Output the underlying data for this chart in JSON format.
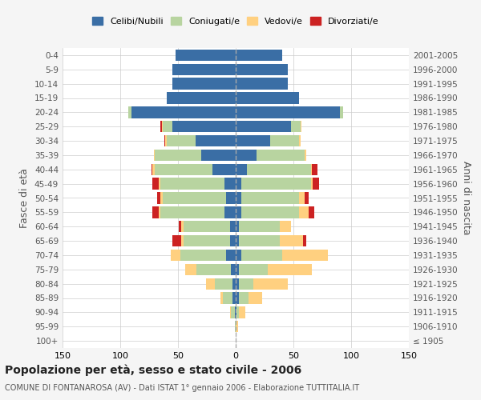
{
  "age_groups": [
    "100+",
    "95-99",
    "90-94",
    "85-89",
    "80-84",
    "75-79",
    "70-74",
    "65-69",
    "60-64",
    "55-59",
    "50-54",
    "45-49",
    "40-44",
    "35-39",
    "30-34",
    "25-29",
    "20-24",
    "15-19",
    "10-14",
    "5-9",
    "0-4"
  ],
  "birth_years": [
    "≤ 1905",
    "1906-1910",
    "1911-1915",
    "1916-1920",
    "1921-1925",
    "1926-1930",
    "1931-1935",
    "1936-1940",
    "1941-1945",
    "1946-1950",
    "1951-1955",
    "1956-1960",
    "1961-1965",
    "1966-1970",
    "1971-1975",
    "1976-1980",
    "1981-1985",
    "1986-1990",
    "1991-1995",
    "1996-2000",
    "2001-2005"
  ],
  "males": {
    "celibi": [
      0,
      0,
      1,
      3,
      3,
      4,
      8,
      5,
      5,
      10,
      8,
      10,
      20,
      30,
      35,
      55,
      90,
      60,
      55,
      55,
      52
    ],
    "coniugati": [
      0,
      1,
      3,
      8,
      15,
      30,
      40,
      40,
      40,
      55,
      55,
      55,
      50,
      40,
      25,
      8,
      3,
      0,
      0,
      0,
      0
    ],
    "vedovi": [
      0,
      0,
      1,
      2,
      8,
      10,
      8,
      2,
      2,
      2,
      2,
      2,
      2,
      1,
      1,
      1,
      0,
      0,
      0,
      0,
      0
    ],
    "divorziati": [
      0,
      0,
      0,
      0,
      0,
      0,
      0,
      8,
      2,
      5,
      3,
      5,
      1,
      0,
      1,
      1,
      0,
      0,
      0,
      0,
      0
    ]
  },
  "females": {
    "nubili": [
      0,
      0,
      1,
      3,
      3,
      3,
      5,
      3,
      3,
      5,
      5,
      5,
      10,
      18,
      30,
      48,
      90,
      55,
      45,
      45,
      40
    ],
    "coniugate": [
      0,
      0,
      2,
      8,
      12,
      25,
      35,
      35,
      35,
      50,
      50,
      60,
      55,
      42,
      25,
      8,
      3,
      0,
      0,
      0,
      0
    ],
    "vedove": [
      0,
      2,
      5,
      12,
      30,
      38,
      40,
      20,
      10,
      8,
      5,
      2,
      1,
      1,
      1,
      1,
      0,
      0,
      0,
      0,
      0
    ],
    "divorziate": [
      0,
      0,
      0,
      0,
      0,
      0,
      0,
      3,
      0,
      5,
      3,
      5,
      5,
      0,
      0,
      0,
      0,
      0,
      0,
      0,
      0
    ]
  },
  "colors": {
    "celibi": "#3a6ea5",
    "coniugati": "#b8d4a0",
    "vedovi": "#ffd080",
    "divorziati": "#cc2222"
  },
  "xlim": 150,
  "title": "Popolazione per età, sesso e stato civile - 2006",
  "subtitle": "COMUNE DI FONTANAROSA (AV) - Dati ISTAT 1° gennaio 2006 - Elaborazione TUTTITALIA.IT",
  "ylabel_left": "Fasce di età",
  "ylabel_right": "Anni di nascita",
  "bg_color": "#f5f5f5",
  "plot_bg": "#ffffff",
  "grid_color": "#cccccc"
}
